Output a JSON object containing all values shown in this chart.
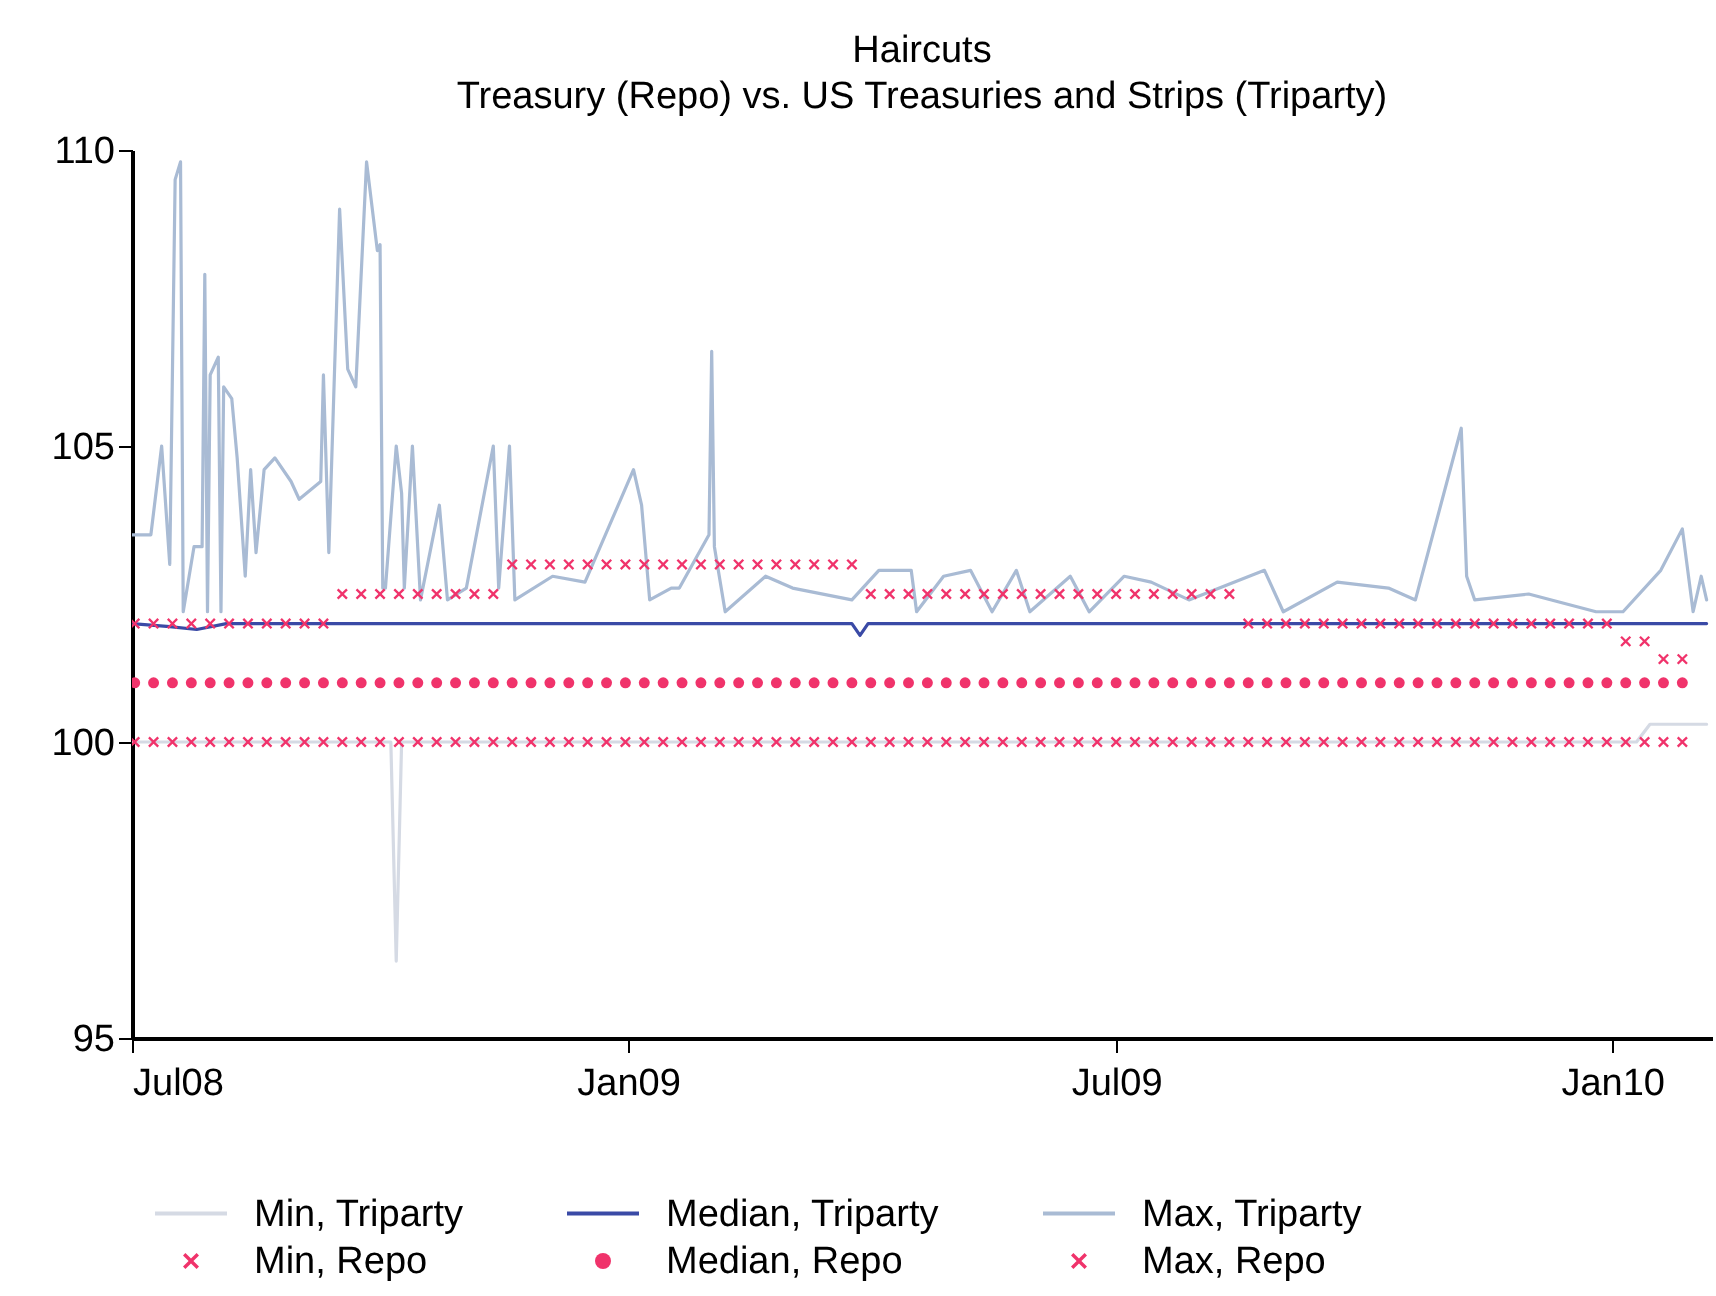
{
  "chart_data": {
    "type": "line",
    "title": "Haircuts",
    "subtitle": "Treasury (Repo) vs. US Treasuries and Strips (Triparty)",
    "xlim": [
      "2008-07-01",
      "2010-02-07"
    ],
    "xticks": [
      {
        "value": "2008-07-01",
        "label": "Jul08"
      },
      {
        "value": "2009-01-01",
        "label": "Jan09"
      },
      {
        "value": "2009-07-01",
        "label": "Jul09"
      },
      {
        "value": "2010-01-01",
        "label": "Jan10"
      }
    ],
    "ylim": [
      95,
      110
    ],
    "yticks": [
      95,
      100,
      105,
      110
    ],
    "grid": false,
    "legend": "bottom",
    "x": [
      "2008-07-02",
      "2008-07-09",
      "2008-07-16",
      "2008-07-23",
      "2008-07-30",
      "2008-08-06",
      "2008-08-13",
      "2008-08-20",
      "2008-08-27",
      "2008-09-03",
      "2008-09-10",
      "2008-09-17",
      "2008-09-24",
      "2008-10-01",
      "2008-10-08",
      "2008-10-15",
      "2008-10-22",
      "2008-10-29",
      "2008-11-05",
      "2008-11-12",
      "2008-11-19",
      "2008-11-26",
      "2008-12-03",
      "2008-12-10",
      "2008-12-17",
      "2008-12-24",
      "2008-12-31",
      "2009-01-07",
      "2009-01-14",
      "2009-01-21",
      "2009-01-28",
      "2009-02-04",
      "2009-02-11",
      "2009-02-18",
      "2009-02-25",
      "2009-03-04",
      "2009-03-11",
      "2009-03-18",
      "2009-03-25",
      "2009-04-01",
      "2009-04-08",
      "2009-04-15",
      "2009-04-22",
      "2009-04-29",
      "2009-05-06",
      "2009-05-13",
      "2009-05-20",
      "2009-05-27",
      "2009-06-03",
      "2009-06-10",
      "2009-06-17",
      "2009-06-24",
      "2009-07-01",
      "2009-07-08",
      "2009-07-15",
      "2009-07-22",
      "2009-07-29",
      "2009-08-05",
      "2009-08-12",
      "2009-08-19",
      "2009-08-26",
      "2009-09-02",
      "2009-09-09",
      "2009-09-16",
      "2009-09-23",
      "2009-09-30",
      "2009-10-07",
      "2009-10-14",
      "2009-10-21",
      "2009-10-28",
      "2009-11-04",
      "2009-11-11",
      "2009-11-18",
      "2009-11-25",
      "2009-12-02",
      "2009-12-09",
      "2009-12-16",
      "2009-12-23",
      "2009-12-30",
      "2010-01-06",
      "2010-01-13",
      "2010-01-20",
      "2010-01-27"
    ],
    "series": [
      {
        "name": "Min, Triparty",
        "type": "line",
        "color": "#d5dae4",
        "x": [
          "2008-07-01",
          "2008-10-05",
          "2008-10-07",
          "2008-10-09",
          "2010-01-10",
          "2010-01-15",
          "2010-02-05"
        ],
        "values": [
          100,
          100,
          96.3,
          100,
          100,
          100.3,
          100.3
        ]
      },
      {
        "name": "Median, Triparty",
        "type": "line",
        "color": "#3a4aa6",
        "x": [
          "2008-07-01",
          "2008-07-15",
          "2008-07-25",
          "2008-08-05",
          "2009-03-25",
          "2009-03-28",
          "2009-03-31",
          "2010-02-05"
        ],
        "values": [
          102,
          101.95,
          101.9,
          102,
          102,
          101.8,
          102,
          102
        ]
      },
      {
        "name": "Max, Triparty",
        "type": "line",
        "color": "#a9bbd4",
        "x": [
          "2008-07-01",
          "2008-07-08",
          "2008-07-12",
          "2008-07-15",
          "2008-07-17",
          "2008-07-19",
          "2008-07-20",
          "2008-07-24",
          "2008-07-27",
          "2008-07-28",
          "2008-07-29",
          "2008-07-30",
          "2008-08-02",
          "2008-08-03",
          "2008-08-04",
          "2008-08-07",
          "2008-08-09",
          "2008-08-12",
          "2008-08-14",
          "2008-08-16",
          "2008-08-19",
          "2008-08-23",
          "2008-08-29",
          "2008-09-01",
          "2008-09-09",
          "2008-09-10",
          "2008-09-12",
          "2008-09-16",
          "2008-09-19",
          "2008-09-22",
          "2008-09-26",
          "2008-09-30",
          "2008-10-01",
          "2008-10-02",
          "2008-10-03",
          "2008-10-07",
          "2008-10-09",
          "2008-10-10",
          "2008-10-13",
          "2008-10-16",
          "2008-10-23",
          "2008-10-26",
          "2008-11-02",
          "2008-11-12",
          "2008-11-14",
          "2008-11-18",
          "2008-11-20",
          "2008-12-04",
          "2008-12-16",
          "2009-01-03",
          "2009-01-06",
          "2009-01-09",
          "2009-01-17",
          "2009-01-20",
          "2009-01-31",
          "2009-02-01",
          "2009-02-02",
          "2009-02-06",
          "2009-02-21",
          "2009-03-03",
          "2009-03-25",
          "2009-04-04",
          "2009-04-16",
          "2009-04-18",
          "2009-04-28",
          "2009-05-08",
          "2009-05-16",
          "2009-05-25",
          "2009-05-30",
          "2009-06-14",
          "2009-06-21",
          "2009-07-04",
          "2009-07-14",
          "2009-07-28",
          "2009-08-25",
          "2009-09-01",
          "2009-09-21",
          "2009-10-10",
          "2009-10-20",
          "2009-11-06",
          "2009-11-08",
          "2009-11-11",
          "2009-12-01",
          "2009-12-26",
          "2010-01-05",
          "2010-01-19",
          "2010-01-27",
          "2010-01-31",
          "2010-02-03",
          "2010-02-05"
        ],
        "values": [
          103.5,
          103.5,
          105,
          103,
          109.5,
          109.8,
          102.2,
          103.3,
          103.3,
          107.9,
          102.2,
          106.2,
          106.5,
          102.2,
          106,
          105.8,
          104.8,
          102.8,
          104.6,
          103.2,
          104.6,
          104.8,
          104.4,
          104.1,
          104.4,
          106.2,
          103.2,
          109,
          106.3,
          106,
          109.8,
          108.3,
          108.4,
          102.6,
          102.6,
          105,
          104.2,
          102.6,
          105,
          102.4,
          104,
          102.4,
          102.6,
          105,
          102.6,
          105,
          102.4,
          102.8,
          102.7,
          104.6,
          104,
          102.4,
          102.6,
          102.6,
          103.5,
          106.6,
          103.3,
          102.2,
          102.8,
          102.6,
          102.4,
          102.9,
          102.9,
          102.2,
          102.8,
          102.9,
          102.2,
          102.9,
          102.2,
          102.8,
          102.2,
          102.8,
          102.7,
          102.4,
          102.9,
          102.2,
          102.7,
          102.6,
          102.4,
          105.3,
          102.8,
          102.4,
          102.5,
          102.2,
          102.2,
          102.9,
          103.6,
          102.2,
          102.8,
          102.4
        ]
      },
      {
        "name": "Min, Repo",
        "type": "scatter",
        "marker": "cross",
        "color": "#f0336b",
        "values": [
          100,
          100,
          100,
          100,
          100,
          100,
          100,
          100,
          100,
          100,
          100,
          100,
          100,
          100,
          100,
          100,
          100,
          100,
          100,
          100,
          100,
          100,
          100,
          100,
          100,
          100,
          100,
          100,
          100,
          100,
          100,
          100,
          100,
          100,
          100,
          100,
          100,
          100,
          100,
          100,
          100,
          100,
          100,
          100,
          100,
          100,
          100,
          100,
          100,
          100,
          100,
          100,
          100,
          100,
          100,
          100,
          100,
          100,
          100,
          100,
          100,
          100,
          100,
          100,
          100,
          100,
          100,
          100,
          100,
          100,
          100,
          100,
          100,
          100,
          100,
          100,
          100,
          100,
          100,
          100,
          100,
          100,
          100
        ]
      },
      {
        "name": "Median, Repo",
        "type": "scatter",
        "marker": "circle",
        "color": "#f0336b",
        "values": [
          101,
          101,
          101,
          101,
          101,
          101,
          101,
          101,
          101,
          101,
          101,
          101,
          101,
          101,
          101,
          101,
          101,
          101,
          101,
          101,
          101,
          101,
          101,
          101,
          101,
          101,
          101,
          101,
          101,
          101,
          101,
          101,
          101,
          101,
          101,
          101,
          101,
          101,
          101,
          101,
          101,
          101,
          101,
          101,
          101,
          101,
          101,
          101,
          101,
          101,
          101,
          101,
          101,
          101,
          101,
          101,
          101,
          101,
          101,
          101,
          101,
          101,
          101,
          101,
          101,
          101,
          101,
          101,
          101,
          101,
          101,
          101,
          101,
          101,
          101,
          101,
          101,
          101,
          101,
          101,
          101,
          101,
          101
        ]
      },
      {
        "name": "Max, Repo",
        "type": "scatter",
        "marker": "cross",
        "color": "#f0336b",
        "values": [
          102,
          102,
          102,
          102,
          102,
          102,
          102,
          102,
          102,
          102,
          102,
          102.5,
          102.5,
          102.5,
          102.5,
          102.5,
          102.5,
          102.5,
          102.5,
          102.5,
          103,
          103,
          103,
          103,
          103,
          103,
          103,
          103,
          103,
          103,
          103,
          103,
          103,
          103,
          103,
          103,
          103,
          103,
          103,
          102.5,
          102.5,
          102.5,
          102.5,
          102.5,
          102.5,
          102.5,
          102.5,
          102.5,
          102.5,
          102.5,
          102.5,
          102.5,
          102.5,
          102.5,
          102.5,
          102.5,
          102.5,
          102.5,
          102.5,
          102,
          102,
          102,
          102,
          102,
          102,
          102,
          102,
          102,
          102,
          102,
          102,
          102,
          102,
          102,
          102,
          102,
          102,
          102,
          102,
          101.7,
          101.7,
          101.4,
          101.4
        ]
      }
    ]
  }
}
